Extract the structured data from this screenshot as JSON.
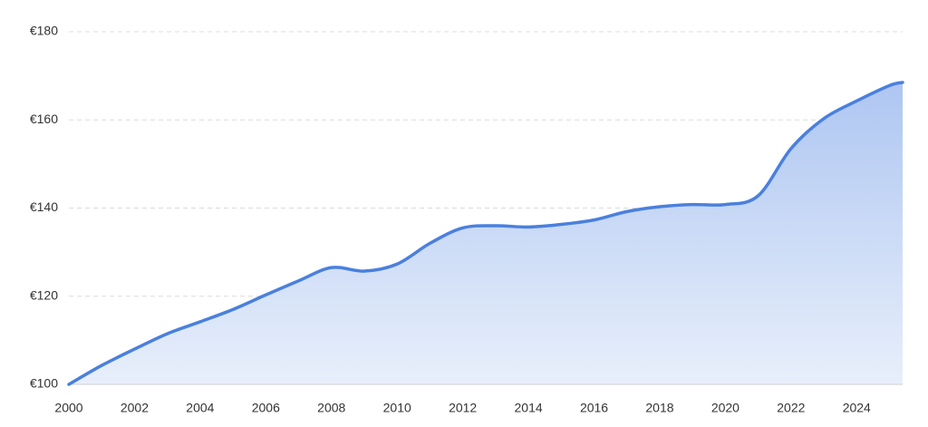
{
  "chart_data": {
    "type": "area",
    "x": [
      2000,
      2001,
      2002,
      2003,
      2004,
      2005,
      2006,
      2007,
      2008,
      2009,
      2010,
      2011,
      2012,
      2013,
      2014,
      2015,
      2016,
      2017,
      2018,
      2019,
      2020,
      2021,
      2022,
      2023,
      2024,
      2025,
      2025.4
    ],
    "values": [
      100,
      104.3,
      108,
      111.5,
      114.2,
      117,
      120.3,
      123.5,
      126.5,
      125.7,
      127.3,
      132,
      135.5,
      136,
      135.7,
      136.3,
      137.3,
      139.2,
      140.3,
      140.8,
      140.8,
      142.8,
      153.5,
      160.3,
      164.3,
      167.8,
      168.5
    ],
    "color": "#4a80de",
    "xlim": [
      2000,
      2025.4
    ],
    "xticks": [
      2000,
      2002,
      2004,
      2006,
      2008,
      2010,
      2012,
      2014,
      2016,
      2018,
      2020,
      2022,
      2024
    ],
    "ylim": [
      100,
      180
    ],
    "yticks": [
      {
        "value": 100,
        "label": "€100"
      },
      {
        "value": 120,
        "label": "€120"
      },
      {
        "value": 140,
        "label": "€140"
      },
      {
        "value": 160,
        "label": "€160"
      },
      {
        "value": 180,
        "label": "€180"
      }
    ],
    "grid": true
  }
}
